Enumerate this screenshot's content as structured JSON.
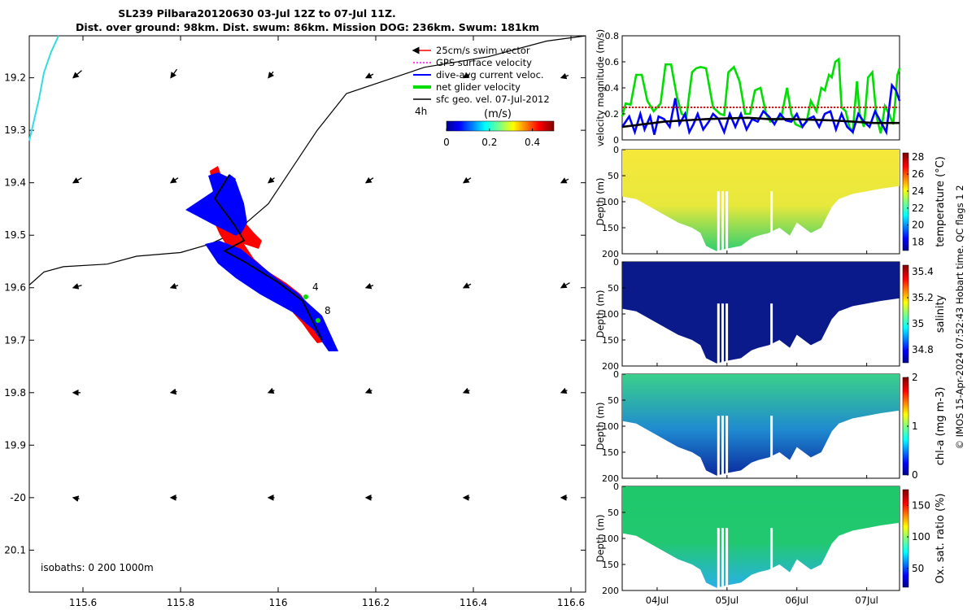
{
  "title_line1": "SL239 Pilbara20120630 03-Jul 12Z to 07-Jul 11Z.",
  "title_line2": "Dist. over ground: 98km. Dist. swum: 86km. Mission DOG: 236km. Swum: 181km",
  "side_credit": "© IMOS 15-Apr-2024 07:52:43 Hobart time. QC flags 1  2",
  "colors": {
    "swim": "#ff0000",
    "gps": "#ff00ff",
    "dive_avg": "#0000ff",
    "net_glider": "#00dd00",
    "sfc_geo": "#000000",
    "coast": "#33dddd"
  },
  "chart_data": [
    {
      "type": "map",
      "xlim": [
        115.49,
        116.63
      ],
      "ylim": [
        -20.18,
        -19.12
      ],
      "x_ticks": [
        115.6,
        115.8,
        116,
        116.2,
        116.4,
        116.6
      ],
      "x_tick_labels": [
        "115.6",
        "115.8",
        "116",
        "116.2",
        "116.4",
        "116.6"
      ],
      "y_ticks": [
        -19.2,
        -19.3,
        -19.4,
        -19.5,
        -19.6,
        -19.7,
        -19.8,
        -19.9,
        -20,
        -20.1
      ],
      "y_tick_labels": [
        "19.2",
        "19.3",
        "19.4",
        "19.5",
        "19.6",
        "19.7",
        "19.8",
        "19.9",
        "-20",
        "20.1"
      ],
      "legend": [
        {
          "label": "25cm/s swim vector",
          "color": "#ff0000"
        },
        {
          "label": "GPS surface velocity",
          "color": "#ff00ff"
        },
        {
          "label": "dive-avg current veloc.",
          "color": "#0000ff"
        },
        {
          "label": "net glider velocity",
          "color": "#00dd00"
        },
        {
          "label": "sfc geo. vel. 07-Jul-2012",
          "color": "#000000"
        }
      ],
      "legend_placement": "top-right",
      "colorbar": {
        "label": "(m/s)",
        "ticks": [
          0,
          0.2,
          0.4
        ],
        "tick_labels": [
          "0",
          "0.2",
          "0.4"
        ],
        "range": [
          0,
          0.5
        ],
        "extra_label": "4h"
      },
      "isobaths_label": "isobaths: 0   200  1000m",
      "isobath_1000m": [
        [
          115.49,
          -19.595
        ],
        [
          115.52,
          -19.57
        ],
        [
          115.56,
          -19.56
        ],
        [
          115.65,
          -19.555
        ],
        [
          115.71,
          -19.54
        ],
        [
          115.8,
          -19.533
        ],
        [
          115.86,
          -19.517
        ],
        [
          115.9,
          -19.5
        ],
        [
          115.93,
          -19.48
        ],
        [
          115.98,
          -19.44
        ],
        [
          116.03,
          -19.37
        ],
        [
          116.08,
          -19.3
        ],
        [
          116.14,
          -19.23
        ],
        [
          116.3,
          -19.18
        ],
        [
          116.43,
          -19.16
        ],
        [
          116.55,
          -19.13
        ],
        [
          116.63,
          -19.12
        ]
      ],
      "coastline": [
        [
          115.49,
          -19.32
        ],
        [
          115.5,
          -19.28
        ],
        [
          115.51,
          -19.24
        ],
        [
          115.52,
          -19.19
        ],
        [
          115.535,
          -19.15
        ],
        [
          115.55,
          -19.12
        ]
      ],
      "glider_track": [
        [
          115.9,
          -19.385
        ],
        [
          115.87,
          -19.43
        ],
        [
          115.91,
          -19.48
        ],
        [
          115.93,
          -19.51
        ],
        [
          115.89,
          -19.53
        ],
        [
          115.93,
          -19.55
        ],
        [
          116.0,
          -19.59
        ],
        [
          116.05,
          -19.625
        ],
        [
          116.09,
          -19.7
        ]
      ],
      "time_markers": [
        {
          "label": "4",
          "lon": 116.07,
          "lat": -19.605
        },
        {
          "label": "8",
          "lon": 116.095,
          "lat": -19.65
        }
      ],
      "current_arrow_grid": {
        "lons": [
          115.58,
          115.78,
          115.98,
          116.18,
          116.38,
          116.58
        ],
        "lats": [
          -19.2,
          -19.4,
          -19.6,
          -19.8,
          -20.0
        ],
        "rows": [
          [
            [
              -0.07,
              -0.06
            ],
            [
              -0.05,
              -0.07
            ],
            [
              -0.04,
              -0.05
            ],
            [
              -0.06,
              -0.03
            ],
            [
              -0.05,
              -0.03
            ],
            [
              -0.06,
              -0.02
            ]
          ],
          [
            [
              -0.07,
              -0.04
            ],
            [
              -0.06,
              -0.04
            ],
            [
              -0.05,
              -0.04
            ],
            [
              -0.06,
              -0.04
            ],
            [
              -0.06,
              -0.04
            ],
            [
              -0.06,
              -0.03
            ]
          ],
          [
            [
              -0.07,
              -0.02
            ],
            [
              -0.06,
              -0.02
            ],
            [
              -0.06,
              -0.03
            ],
            [
              -0.06,
              -0.02
            ],
            [
              -0.06,
              -0.03
            ],
            [
              -0.07,
              -0.04
            ]
          ],
          [
            [
              -0.06,
              0.0
            ],
            [
              -0.05,
              -0.01
            ],
            [
              -0.05,
              -0.02
            ],
            [
              -0.05,
              -0.02
            ],
            [
              -0.05,
              -0.02
            ],
            [
              -0.05,
              -0.02
            ]
          ],
          [
            [
              -0.05,
              0.01
            ],
            [
              -0.05,
              0.0
            ],
            [
              -0.05,
              0.0
            ],
            [
              -0.05,
              0.0
            ],
            [
              -0.05,
              0.0
            ],
            [
              -0.05,
              0.0
            ]
          ]
        ]
      }
    },
    {
      "type": "line",
      "ylabel": "velocity magnitude (m/s)",
      "ylim": [
        0,
        0.8
      ],
      "y_ticks": [
        0,
        0.2,
        0.4,
        0.6,
        0.8
      ],
      "xlim": [
        3.5,
        7.47
      ],
      "series": [
        {
          "color": "#00dd00",
          "x": [
            3.5,
            3.55,
            3.62,
            3.7,
            3.78,
            3.86,
            3.95,
            4.05,
            4.12,
            4.2,
            4.28,
            4.35,
            4.42,
            4.5,
            4.56,
            4.62,
            4.7,
            4.8,
            4.9,
            4.96,
            5.02,
            5.1,
            5.18,
            5.26,
            5.33,
            5.4,
            5.48,
            5.56,
            5.62,
            5.7,
            5.78,
            5.86,
            5.92,
            5.98,
            6.06,
            6.14,
            6.2,
            6.28,
            6.35,
            6.4,
            6.46,
            6.5,
            6.55,
            6.6,
            6.64,
            6.7,
            6.75,
            6.8,
            6.86,
            6.9,
            6.96,
            7.02,
            7.08,
            7.14,
            7.2,
            7.26,
            7.32,
            7.38,
            7.44,
            7.47
          ],
          "values": [
            0.18,
            0.28,
            0.27,
            0.5,
            0.5,
            0.3,
            0.22,
            0.28,
            0.58,
            0.58,
            0.34,
            0.2,
            0.18,
            0.52,
            0.55,
            0.56,
            0.55,
            0.25,
            0.2,
            0.19,
            0.52,
            0.56,
            0.45,
            0.2,
            0.2,
            0.38,
            0.4,
            0.2,
            0.14,
            0.16,
            0.18,
            0.4,
            0.2,
            0.12,
            0.1,
            0.14,
            0.3,
            0.22,
            0.4,
            0.38,
            0.5,
            0.48,
            0.6,
            0.62,
            0.25,
            0.22,
            0.1,
            0.06,
            0.45,
            0.2,
            0.1,
            0.48,
            0.52,
            0.18,
            0.05,
            0.26,
            0.2,
            0.12,
            0.5,
            0.55
          ]
        },
        {
          "color": "#0000ff",
          "x": [
            3.5,
            3.6,
            3.68,
            3.76,
            3.82,
            3.9,
            3.96,
            4.02,
            4.1,
            4.18,
            4.26,
            4.32,
            4.4,
            4.46,
            4.52,
            4.58,
            4.66,
            4.74,
            4.8,
            4.88,
            4.96,
            5.04,
            5.12,
            5.2,
            5.28,
            5.36,
            5.44,
            5.52,
            5.6,
            5.68,
            5.76,
            5.84,
            5.92,
            6.0,
            6.08,
            6.16,
            6.24,
            6.32,
            6.4,
            6.48,
            6.56,
            6.64,
            6.72,
            6.8,
            6.88,
            6.96,
            7.04,
            7.12,
            7.2,
            7.28,
            7.36,
            7.42,
            7.47
          ],
          "values": [
            0.1,
            0.18,
            0.06,
            0.2,
            0.08,
            0.18,
            0.04,
            0.18,
            0.16,
            0.1,
            0.32,
            0.12,
            0.2,
            0.06,
            0.12,
            0.2,
            0.08,
            0.14,
            0.2,
            0.16,
            0.06,
            0.2,
            0.1,
            0.2,
            0.08,
            0.16,
            0.14,
            0.22,
            0.18,
            0.12,
            0.2,
            0.15,
            0.14,
            0.2,
            0.1,
            0.16,
            0.18,
            0.1,
            0.2,
            0.22,
            0.08,
            0.2,
            0.1,
            0.06,
            0.2,
            0.14,
            0.1,
            0.22,
            0.14,
            0.06,
            0.42,
            0.38,
            0.3
          ]
        },
        {
          "color": "#000000",
          "x": [
            3.5,
            3.8,
            4.1,
            4.4,
            4.7,
            5.0,
            5.3,
            5.6,
            5.9,
            6.2,
            6.5,
            6.8,
            7.1,
            7.47
          ],
          "values": [
            0.1,
            0.12,
            0.14,
            0.15,
            0.16,
            0.165,
            0.17,
            0.16,
            0.16,
            0.155,
            0.15,
            0.14,
            0.13,
            0.13
          ]
        },
        {
          "color": "#ff0000",
          "x": [
            3.5,
            7.47
          ],
          "values": [
            0.25,
            0.25
          ],
          "style": "dotted"
        }
      ]
    },
    {
      "type": "heatmap",
      "ylabel": "Depth (m)",
      "cbar_label": "temperature (°C)",
      "cbar_ticks": [
        18,
        20,
        22,
        24,
        26,
        28
      ],
      "cbar_range": [
        17,
        28.5
      ],
      "y_ticks": [
        0,
        50,
        100,
        150,
        200
      ],
      "ylim": [
        0,
        200
      ],
      "x_ticks": [
        4,
        5,
        6,
        7
      ],
      "x_tick_labels": [
        "04Jul",
        "05Jul",
        "06Jul",
        "07Jul"
      ],
      "xlim": [
        3.5,
        7.47
      ]
    },
    {
      "type": "heatmap",
      "ylabel": "Depth (m)",
      "cbar_label": "salinity",
      "cbar_ticks": [
        34.8,
        35,
        35.2,
        35.4
      ],
      "cbar_tick_labels": [
        "34.8",
        "35",
        "35.2",
        "35.4"
      ],
      "cbar_range": [
        34.7,
        35.45
      ],
      "y_ticks": [
        0,
        50,
        100,
        150,
        200
      ],
      "ylim": [
        0,
        200
      ]
    },
    {
      "type": "heatmap",
      "ylabel": "Depth (m)",
      "cbar_label": "chl-a (mg m-3)",
      "cbar_ticks": [
        0,
        1,
        2
      ],
      "cbar_range": [
        0,
        2
      ],
      "y_ticks": [
        0,
        50,
        100,
        150,
        200
      ],
      "ylim": [
        0,
        200
      ]
    },
    {
      "type": "heatmap",
      "ylabel": "Depth (m)",
      "cbar_label": "Ox. sat. ratio (%)",
      "cbar_ticks": [
        50,
        100,
        150
      ],
      "cbar_range": [
        20,
        175
      ],
      "y_ticks": [
        0,
        50,
        100,
        150,
        200
      ],
      "ylim": [
        0,
        200
      ],
      "x_ticks": [
        4,
        5,
        6,
        7
      ],
      "x_tick_labels": [
        "04Jul",
        "05Jul",
        "06Jul",
        "07Jul"
      ]
    }
  ]
}
